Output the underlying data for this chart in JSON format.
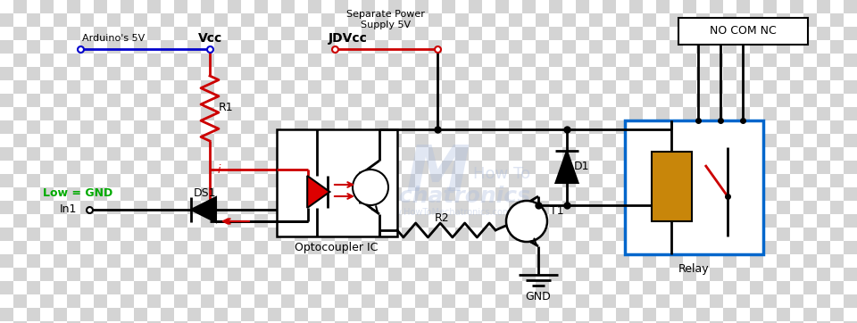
{
  "bg_checker_light": "#ffffff",
  "bg_checker_dark": "#d4d4d4",
  "checker_size": 15,
  "colors": {
    "black": "#000000",
    "red": "#cc0000",
    "blue": "#0000cc",
    "green": "#00aa00",
    "relay_blue": "#0066cc",
    "coil_fill": "#c8860a",
    "led_fill": "#dd0000",
    "watermark": "#aabbdd"
  },
  "labels": {
    "arduino_5v": "Arduino's 5V",
    "vcc": "Vcc",
    "jdvcc": "JDVcc",
    "sep_power": "Separate Power\nSupply 5V",
    "r1": "R1",
    "r2": "R2",
    "ds1": "DS1",
    "d1": "D1",
    "t1": "T1",
    "gnd": "GND",
    "optocoupler": "Optocoupler IC",
    "relay": "Relay",
    "no_com_nc": "NO COM NC",
    "low_gnd": "Low = GND",
    "in1": "In1",
    "i_label": "i"
  }
}
